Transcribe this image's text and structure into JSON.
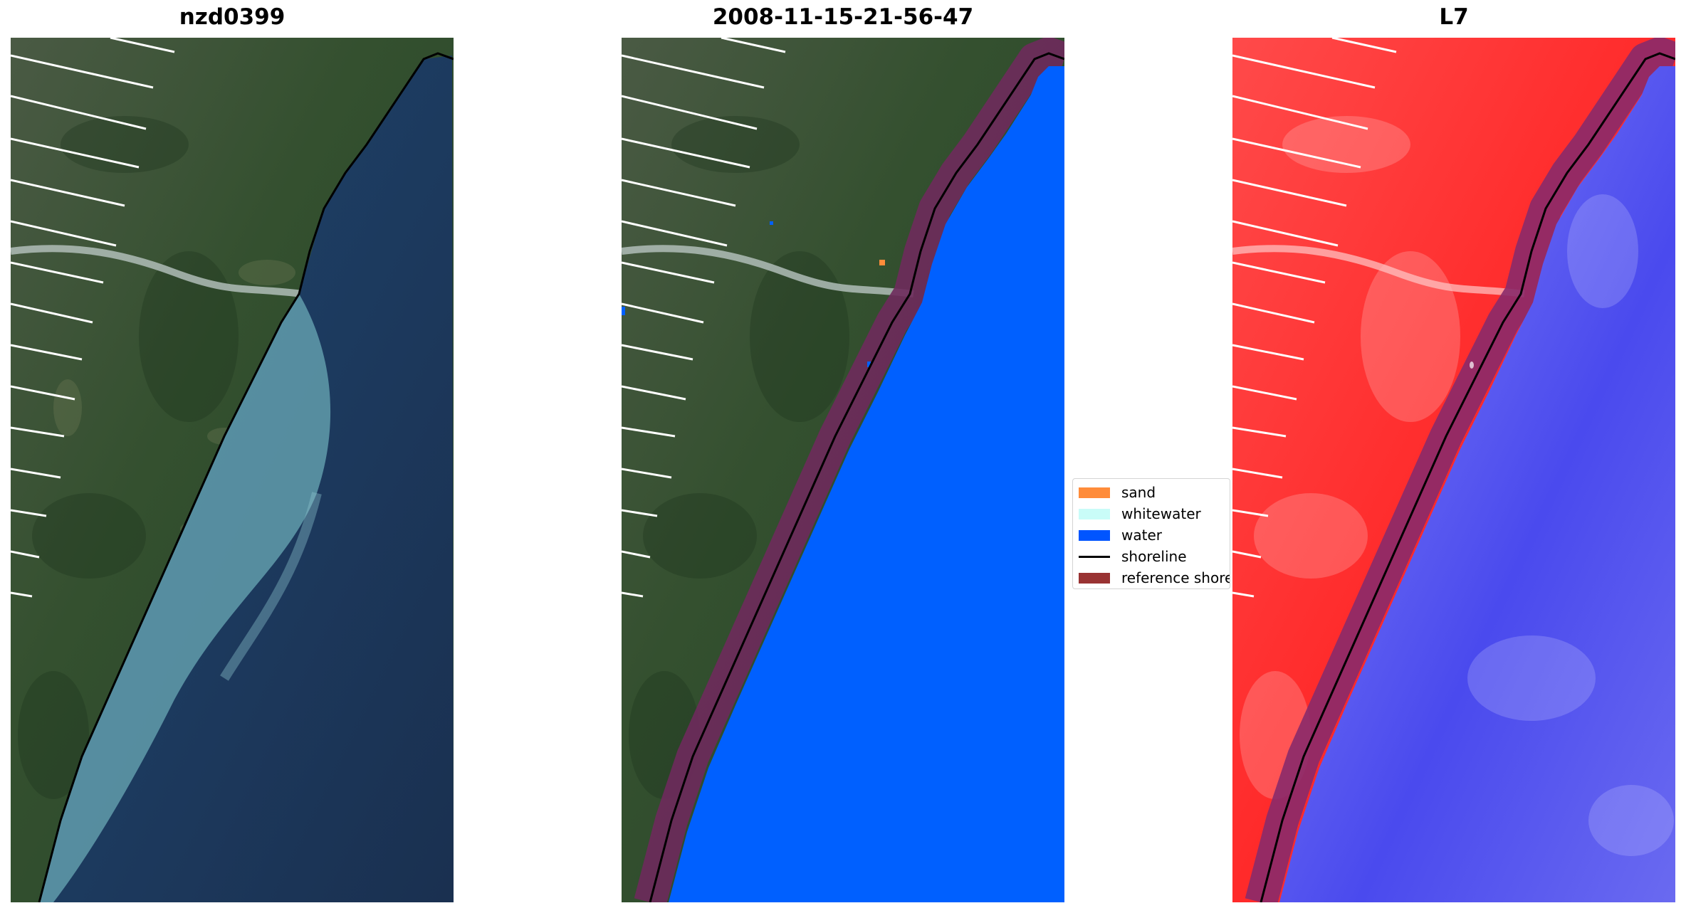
{
  "panels": [
    {
      "title": "nzd0399",
      "view": "true-colour"
    },
    {
      "title": "2008-11-15-21-56-47",
      "view": "classified"
    },
    {
      "title": "L7",
      "view": "false-colour"
    }
  ],
  "legend": {
    "placement": "center-left",
    "items": [
      {
        "label": "sand",
        "color": "#ff8c3a",
        "kind": "patch"
      },
      {
        "label": "whitewater",
        "color": "#c9fcf8",
        "kind": "patch"
      },
      {
        "label": "water",
        "color": "#0055ff",
        "kind": "patch"
      },
      {
        "label": "shoreline",
        "color": "#000000",
        "kind": "line"
      },
      {
        "label": "reference shoreline",
        "color": "#993333",
        "kind": "patch"
      }
    ]
  },
  "colors": {
    "land_true": "#3a5238",
    "sea_true": "#1f3a5c",
    "plume": "#6aa9b5",
    "water_class": "#0060ff",
    "reference_buffer": "#6e2a5c",
    "land_false": "#ff3030",
    "sea_false": "#5555ee"
  }
}
